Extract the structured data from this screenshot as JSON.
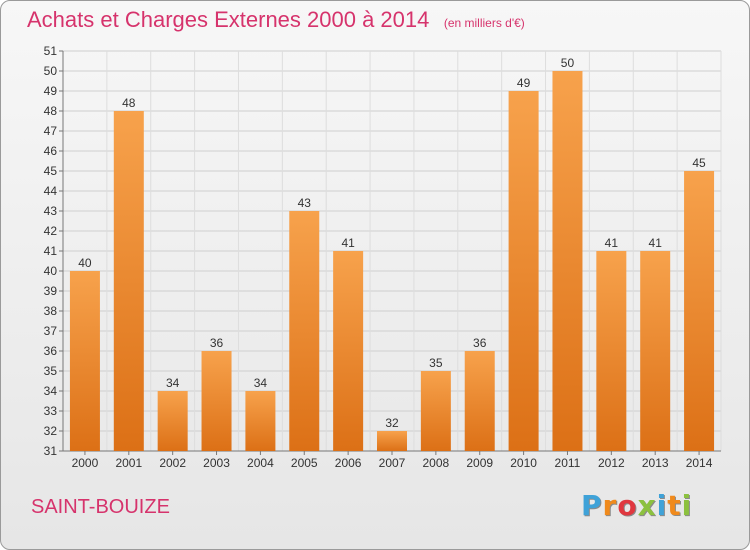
{
  "header": {
    "title": "Achats et Charges Externes 2000 à 2014",
    "subtitle": "(en milliers d'€)"
  },
  "footer": {
    "location": "SAINT-BOUIZE",
    "brand": "Proxiti"
  },
  "colors": {
    "title": "#d6336c",
    "bar_light": "#f7a24c",
    "bar_dark": "#dc7016",
    "brand_letters": [
      "#3fa2d8",
      "#f08a1c",
      "#e0383f",
      "#8cc13f",
      "#3fa2d8",
      "#f08a1c",
      "#8cc13f"
    ]
  },
  "chart_data": {
    "type": "bar",
    "categories": [
      "2000",
      "2001",
      "2002",
      "2003",
      "2004",
      "2005",
      "2006",
      "2007",
      "2008",
      "2009",
      "2010",
      "2011",
      "2012",
      "2013",
      "2014"
    ],
    "values": [
      40,
      48,
      34,
      36,
      34,
      43,
      41,
      32,
      35,
      36,
      49,
      50,
      41,
      41,
      45
    ],
    "ylim": [
      31,
      51
    ],
    "yticks": [
      31,
      32,
      33,
      34,
      35,
      36,
      37,
      38,
      39,
      40,
      41,
      42,
      43,
      44,
      45,
      46,
      47,
      48,
      49,
      50,
      51
    ],
    "grid": true,
    "data_labels": true,
    "xlabel": "",
    "ylabel": ""
  }
}
